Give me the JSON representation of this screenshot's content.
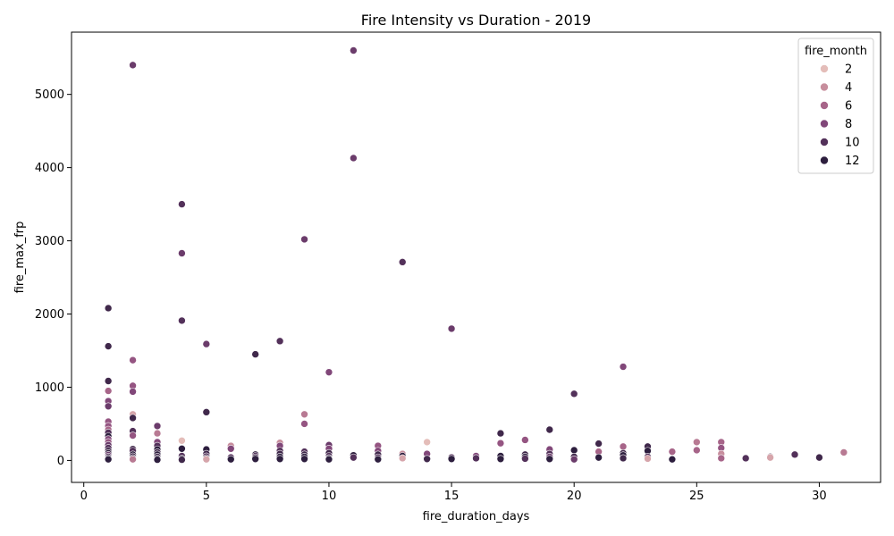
{
  "chart_data": {
    "type": "scatter",
    "title": "Fire Intensity vs Duration - 2019",
    "xlabel": "fire_duration_days",
    "ylabel": "fire_max_frp",
    "xlim": [
      -0.5,
      32.5
    ],
    "ylim": [
      -300,
      5850
    ],
    "xticks": [
      0,
      5,
      10,
      15,
      20,
      25,
      30
    ],
    "yticks": [
      0,
      1000,
      2000,
      3000,
      4000,
      5000
    ],
    "legend": {
      "title": "fire_month",
      "placement": "top-right",
      "entries": [
        {
          "label": "2",
          "color": "#e4bdb9"
        },
        {
          "label": "4",
          "color": "#c78e9d"
        },
        {
          "label": "6",
          "color": "#a76589"
        },
        {
          "label": "8",
          "color": "#814779"
        },
        {
          "label": "10",
          "color": "#53315a"
        },
        {
          "label": "12",
          "color": "#2d1e3e"
        }
      ]
    },
    "colors": {
      "1": "#efd1c6",
      "2": "#e4bdb9",
      "3": "#d6a5ab",
      "4": "#c78e9d",
      "5": "#b87a93",
      "6": "#a76589",
      "7": "#955582",
      "8": "#814779",
      "9": "#6b3c6b",
      "10": "#53315a",
      "11": "#40284b",
      "12": "#2d1e3e"
    },
    "points": [
      {
        "x": 1,
        "y": 2080,
        "m": 11
      },
      {
        "x": 1,
        "y": 1560,
        "m": 11
      },
      {
        "x": 1,
        "y": 1085,
        "m": 11
      },
      {
        "x": 1,
        "y": 950,
        "m": 6
      },
      {
        "x": 1,
        "y": 810,
        "m": 8
      },
      {
        "x": 1,
        "y": 740,
        "m": 9
      },
      {
        "x": 1,
        "y": 530,
        "m": 7
      },
      {
        "x": 1,
        "y": 470,
        "m": 7
      },
      {
        "x": 1,
        "y": 420,
        "m": 6
      },
      {
        "x": 1,
        "y": 380,
        "m": 10
      },
      {
        "x": 1,
        "y": 330,
        "m": 12
      },
      {
        "x": 1,
        "y": 290,
        "m": 8
      },
      {
        "x": 1,
        "y": 250,
        "m": 7
      },
      {
        "x": 1,
        "y": 210,
        "m": 9
      },
      {
        "x": 1,
        "y": 170,
        "m": 10
      },
      {
        "x": 1,
        "y": 130,
        "m": 11
      },
      {
        "x": 1,
        "y": 100,
        "m": 12
      },
      {
        "x": 1,
        "y": 75,
        "m": 9
      },
      {
        "x": 1,
        "y": 50,
        "m": 10
      },
      {
        "x": 1,
        "y": 30,
        "m": 12
      },
      {
        "x": 1,
        "y": 15,
        "m": 12
      },
      {
        "x": 2,
        "y": 5400,
        "m": 9
      },
      {
        "x": 2,
        "y": 1370,
        "m": 7
      },
      {
        "x": 2,
        "y": 1020,
        "m": 7
      },
      {
        "x": 2,
        "y": 940,
        "m": 8
      },
      {
        "x": 2,
        "y": 630,
        "m": 3
      },
      {
        "x": 2,
        "y": 580,
        "m": 11
      },
      {
        "x": 2,
        "y": 400,
        "m": 10
      },
      {
        "x": 2,
        "y": 340,
        "m": 7
      },
      {
        "x": 2,
        "y": 155,
        "m": 11
      },
      {
        "x": 2,
        "y": 130,
        "m": 10
      },
      {
        "x": 2,
        "y": 80,
        "m": 12
      },
      {
        "x": 2,
        "y": 55,
        "m": 11
      },
      {
        "x": 2,
        "y": 30,
        "m": 12
      },
      {
        "x": 2,
        "y": 15,
        "m": 5
      },
      {
        "x": 3,
        "y": 470,
        "m": 9
      },
      {
        "x": 3,
        "y": 370,
        "m": 5
      },
      {
        "x": 3,
        "y": 250,
        "m": 8
      },
      {
        "x": 3,
        "y": 200,
        "m": 10
      },
      {
        "x": 3,
        "y": 150,
        "m": 12
      },
      {
        "x": 3,
        "y": 110,
        "m": 11
      },
      {
        "x": 3,
        "y": 80,
        "m": 12
      },
      {
        "x": 3,
        "y": 50,
        "m": 11
      },
      {
        "x": 3,
        "y": 25,
        "m": 12
      },
      {
        "x": 3,
        "y": 10,
        "m": 12
      },
      {
        "x": 4,
        "y": 3500,
        "m": 10
      },
      {
        "x": 4,
        "y": 2830,
        "m": 9
      },
      {
        "x": 4,
        "y": 1910,
        "m": 10
      },
      {
        "x": 4,
        "y": 270,
        "m": 2
      },
      {
        "x": 4,
        "y": 160,
        "m": 12
      },
      {
        "x": 4,
        "y": 60,
        "m": 10
      },
      {
        "x": 4,
        "y": 25,
        "m": 12
      },
      {
        "x": 4,
        "y": 10,
        "m": 11
      },
      {
        "x": 5,
        "y": 1590,
        "m": 9
      },
      {
        "x": 5,
        "y": 660,
        "m": 11
      },
      {
        "x": 5,
        "y": 150,
        "m": 12
      },
      {
        "x": 5,
        "y": 90,
        "m": 11
      },
      {
        "x": 5,
        "y": 55,
        "m": 10
      },
      {
        "x": 5,
        "y": 30,
        "m": 12
      },
      {
        "x": 5,
        "y": 15,
        "m": 3
      },
      {
        "x": 6,
        "y": 200,
        "m": 4
      },
      {
        "x": 6,
        "y": 160,
        "m": 8
      },
      {
        "x": 6,
        "y": 40,
        "m": 10
      },
      {
        "x": 6,
        "y": 15,
        "m": 12
      },
      {
        "x": 7,
        "y": 1450,
        "m": 11
      },
      {
        "x": 7,
        "y": 80,
        "m": 12
      },
      {
        "x": 7,
        "y": 60,
        "m": 10
      },
      {
        "x": 7,
        "y": 40,
        "m": 11
      },
      {
        "x": 7,
        "y": 20,
        "m": 12
      },
      {
        "x": 8,
        "y": 1630,
        "m": 10
      },
      {
        "x": 8,
        "y": 240,
        "m": 4
      },
      {
        "x": 8,
        "y": 200,
        "m": 8
      },
      {
        "x": 8,
        "y": 130,
        "m": 10
      },
      {
        "x": 8,
        "y": 90,
        "m": 11
      },
      {
        "x": 8,
        "y": 50,
        "m": 12
      },
      {
        "x": 8,
        "y": 20,
        "m": 12
      },
      {
        "x": 9,
        "y": 3020,
        "m": 9
      },
      {
        "x": 9,
        "y": 630,
        "m": 5
      },
      {
        "x": 9,
        "y": 500,
        "m": 7
      },
      {
        "x": 9,
        "y": 120,
        "m": 10
      },
      {
        "x": 9,
        "y": 80,
        "m": 11
      },
      {
        "x": 9,
        "y": 50,
        "m": 12
      },
      {
        "x": 9,
        "y": 20,
        "m": 12
      },
      {
        "x": 10,
        "y": 1205,
        "m": 8
      },
      {
        "x": 10,
        "y": 210,
        "m": 9
      },
      {
        "x": 10,
        "y": 160,
        "m": 8
      },
      {
        "x": 10,
        "y": 100,
        "m": 11
      },
      {
        "x": 10,
        "y": 60,
        "m": 10
      },
      {
        "x": 10,
        "y": 30,
        "m": 12
      },
      {
        "x": 10,
        "y": 15,
        "m": 12
      },
      {
        "x": 11,
        "y": 5600,
        "m": 9
      },
      {
        "x": 11,
        "y": 4130,
        "m": 9
      },
      {
        "x": 11,
        "y": 70,
        "m": 12
      },
      {
        "x": 11,
        "y": 40,
        "m": 10
      },
      {
        "x": 12,
        "y": 200,
        "m": 7
      },
      {
        "x": 12,
        "y": 130,
        "m": 8
      },
      {
        "x": 12,
        "y": 80,
        "m": 11
      },
      {
        "x": 12,
        "y": 40,
        "m": 10
      },
      {
        "x": 12,
        "y": 15,
        "m": 12
      },
      {
        "x": 13,
        "y": 2710,
        "m": 10
      },
      {
        "x": 13,
        "y": 90,
        "m": 4
      },
      {
        "x": 13,
        "y": 60,
        "m": 12
      },
      {
        "x": 13,
        "y": 30,
        "m": 3
      },
      {
        "x": 14,
        "y": 250,
        "m": 2
      },
      {
        "x": 14,
        "y": 90,
        "m": 8
      },
      {
        "x": 14,
        "y": 20,
        "m": 11
      },
      {
        "x": 15,
        "y": 1800,
        "m": 9
      },
      {
        "x": 15,
        "y": 40,
        "m": 10
      },
      {
        "x": 15,
        "y": 20,
        "m": 12
      },
      {
        "x": 16,
        "y": 60,
        "m": 8
      },
      {
        "x": 16,
        "y": 30,
        "m": 10
      },
      {
        "x": 17,
        "y": 370,
        "m": 11
      },
      {
        "x": 17,
        "y": 235,
        "m": 7
      },
      {
        "x": 17,
        "y": 60,
        "m": 12
      },
      {
        "x": 17,
        "y": 20,
        "m": 12
      },
      {
        "x": 18,
        "y": 280,
        "m": 7
      },
      {
        "x": 18,
        "y": 80,
        "m": 11
      },
      {
        "x": 18,
        "y": 50,
        "m": 12
      },
      {
        "x": 18,
        "y": 25,
        "m": 10
      },
      {
        "x": 19,
        "y": 420,
        "m": 11
      },
      {
        "x": 19,
        "y": 150,
        "m": 8
      },
      {
        "x": 19,
        "y": 90,
        "m": 10
      },
      {
        "x": 19,
        "y": 50,
        "m": 9
      },
      {
        "x": 19,
        "y": 20,
        "m": 12
      },
      {
        "x": 20,
        "y": 910,
        "m": 10
      },
      {
        "x": 20,
        "y": 140,
        "m": 12
      },
      {
        "x": 20,
        "y": 50,
        "m": 11
      },
      {
        "x": 20,
        "y": 15,
        "m": 9
      },
      {
        "x": 21,
        "y": 230,
        "m": 11
      },
      {
        "x": 21,
        "y": 120,
        "m": 6
      },
      {
        "x": 21,
        "y": 40,
        "m": 12
      },
      {
        "x": 22,
        "y": 1280,
        "m": 8
      },
      {
        "x": 22,
        "y": 190,
        "m": 6
      },
      {
        "x": 22,
        "y": 100,
        "m": 11
      },
      {
        "x": 22,
        "y": 70,
        "m": 12
      },
      {
        "x": 22,
        "y": 30,
        "m": 11
      },
      {
        "x": 23,
        "y": 190,
        "m": 11
      },
      {
        "x": 23,
        "y": 130,
        "m": 12
      },
      {
        "x": 23,
        "y": 50,
        "m": 10
      },
      {
        "x": 23,
        "y": 25,
        "m": 3
      },
      {
        "x": 24,
        "y": 120,
        "m": 6
      },
      {
        "x": 24,
        "y": 15,
        "m": 12
      },
      {
        "x": 25,
        "y": 250,
        "m": 5
      },
      {
        "x": 25,
        "y": 140,
        "m": 6
      },
      {
        "x": 26,
        "y": 250,
        "m": 6
      },
      {
        "x": 26,
        "y": 170,
        "m": 7
      },
      {
        "x": 26,
        "y": 90,
        "m": 4
      },
      {
        "x": 26,
        "y": 30,
        "m": 6
      },
      {
        "x": 27,
        "y": 30,
        "m": 10
      },
      {
        "x": 28,
        "y": 50,
        "m": 12
      },
      {
        "x": 28,
        "y": 40,
        "m": 3
      },
      {
        "x": 29,
        "y": 80,
        "m": 10
      },
      {
        "x": 30,
        "y": 40,
        "m": 11
      },
      {
        "x": 31,
        "y": 110,
        "m": 5
      }
    ]
  }
}
